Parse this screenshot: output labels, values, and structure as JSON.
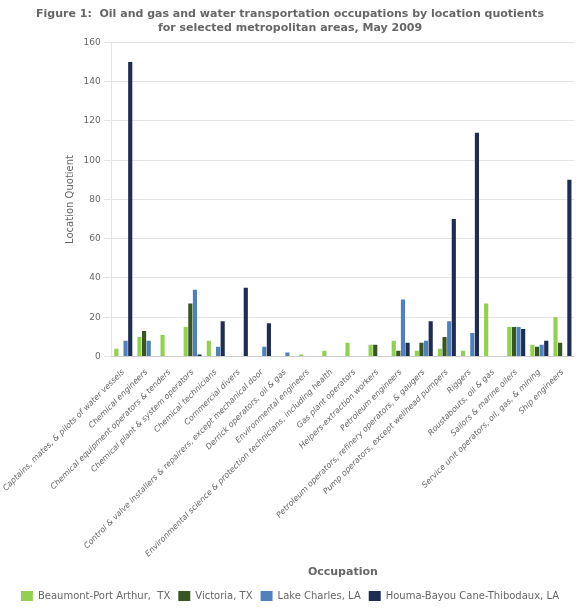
{
  "chart_data": {
    "type": "bar",
    "title": "Figure 1:  Oil and gas and water transportation occupations by location quotients\nfor selected metropolitan areas, May 2009",
    "xlabel": "Occupation",
    "ylabel": "Location Quotient",
    "categories": [
      "Captains, mates, & pilots of water vessels",
      "Chemical engineers",
      "Chemical equipment operators & tenders",
      "Chemical plant & system operators",
      "Chemical technicians",
      "Commercial divers",
      "Control & valve installers & repairers, except mechanical door",
      "Derrick operators, oil & gas",
      "Environmental engineers",
      "Environmental science & protection technicians, including health",
      "Gas plant operators",
      "Helpers-extraction workers",
      "Petroleum engineers",
      "Petroleum operators, refinery operators, & gaugers",
      "Pump operators, except wellhead pumpers",
      "Riggers",
      "Roustabouts, oil & gas",
      "Sailors & marine oilers",
      "Service unit operators, oil, gas, & mining",
      "Ship engineers"
    ],
    "series": [
      {
        "name": "Beaumont-Port Arthur,  TX",
        "color": "#92d050",
        "values": [
          4,
          10,
          11,
          15,
          8,
          0,
          0,
          0,
          1,
          3,
          7,
          6,
          8,
          3,
          4,
          3,
          27,
          15,
          6,
          20
        ]
      },
      {
        "name": "Victoria, TX",
        "color": "#375623",
        "values": [
          0,
          13,
          0,
          27,
          0,
          0,
          0,
          0,
          0,
          0,
          0,
          6,
          3,
          7,
          10,
          0,
          0,
          15,
          5,
          7
        ]
      },
      {
        "name": "Lake Charles, LA",
        "color": "#4f81bd",
        "values": [
          8,
          8,
          0,
          34,
          5,
          0,
          5,
          2,
          0,
          0,
          0,
          0,
          29,
          8,
          18,
          12,
          0,
          15,
          6,
          0
        ]
      },
      {
        "name": "Houma-Bayou Cane-Thibodaux, LA",
        "color": "#1f2d54",
        "values": [
          150,
          0,
          0,
          1,
          18,
          35,
          17,
          0,
          0,
          0,
          0,
          0,
          7,
          18,
          70,
          114,
          0,
          14,
          8,
          90
        ]
      }
    ],
    "ylim": [
      0,
      160
    ],
    "yticks": [
      0,
      20,
      40,
      60,
      80,
      100,
      120,
      140,
      160
    ],
    "grid": true,
    "legend": "bottom"
  }
}
